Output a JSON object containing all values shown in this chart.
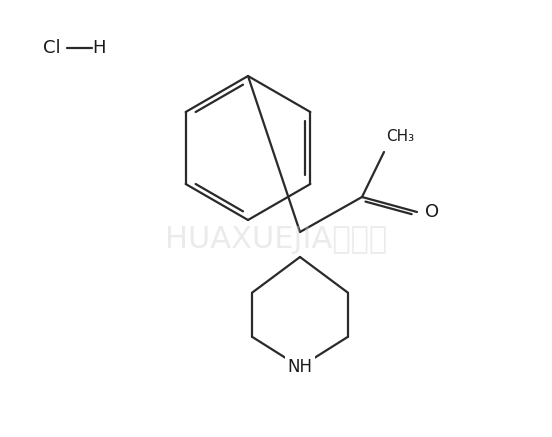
{
  "background_color": "#ffffff",
  "line_color": "#2a2a2a",
  "line_width": 1.6,
  "watermark_text": "HUAXUEJIA化学加",
  "watermark_color": "#cccccc",
  "watermark_fontsize": 22,
  "watermark_alpha": 0.38,
  "nh_label": "NH",
  "ch3_label": "CH₃",
  "o_label": "O",
  "cl_label": "Cl",
  "h_label": "H",
  "label_fontsize": 12,
  "label_color": "#1a1a1a",
  "figsize": [
    5.52,
    4.37
  ],
  "dpi": 100
}
